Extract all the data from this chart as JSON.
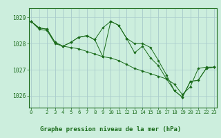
{
  "background_color": "#cceedd",
  "grid_color": "#aacccc",
  "line_color": "#1a6b1a",
  "marker_color": "#1a6b1a",
  "title": "Graphe pression niveau de la mer (hPa)",
  "title_fontsize": 6.5,
  "tick_fontsize": 5.2,
  "ytick_fontsize": 5.8,
  "yticks": [
    1026,
    1027,
    1028,
    1029
  ],
  "xticks": [
    0,
    2,
    3,
    4,
    5,
    6,
    7,
    8,
    9,
    10,
    11,
    12,
    13,
    14,
    15,
    16,
    17,
    18,
    19,
    20,
    21,
    22,
    23
  ],
  "xlim": [
    -0.3,
    23.3
  ],
  "ylim": [
    1025.55,
    1029.35
  ],
  "series": [
    [
      1028.85,
      1028.55,
      1028.5,
      1028.0,
      1027.9,
      1027.85,
      1027.8,
      1027.7,
      1027.6,
      1027.5,
      1027.45,
      1027.35,
      1027.2,
      1027.05,
      1026.95,
      1026.85,
      1026.75,
      1026.65,
      1026.45,
      1026.05,
      1026.35,
      1027.05,
      1027.1,
      1027.1
    ],
    [
      1028.85,
      1028.6,
      1028.55,
      1028.05,
      1027.9,
      1028.05,
      1028.25,
      1028.3,
      1028.15,
      1028.6,
      1028.85,
      1028.7,
      1028.2,
      1028.0,
      1028.0,
      1027.85,
      1027.35,
      1026.8,
      1026.2,
      1025.95,
      1026.55,
      1026.6,
      1027.05,
      1027.1
    ],
    [
      1028.85,
      1028.6,
      1028.55,
      1028.05,
      1027.9,
      1028.05,
      1028.25,
      1028.3,
      1028.15,
      1027.5,
      1028.85,
      1028.7,
      1028.2,
      1027.65,
      1027.9,
      1027.45,
      1027.15,
      1026.65,
      1026.2,
      1025.95,
      1026.55,
      1026.6,
      1027.05,
      1027.1
    ]
  ]
}
